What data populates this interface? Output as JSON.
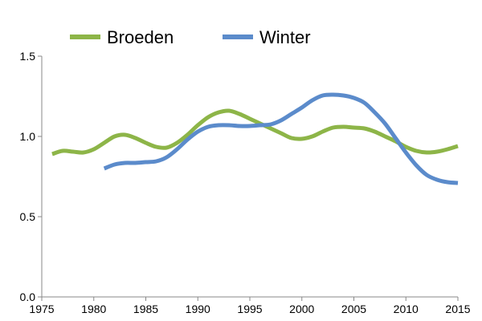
{
  "chart_data": {
    "type": "line",
    "title": "",
    "xlabel": "",
    "ylabel": "",
    "xlim": [
      1975,
      2015
    ],
    "ylim": [
      0.0,
      1.5
    ],
    "x_ticks": [
      "1975",
      "1980",
      "1985",
      "1990",
      "1995",
      "2000",
      "2005",
      "2010",
      "2015"
    ],
    "y_ticks": [
      "0.0",
      "0.5",
      "1.0",
      "1.5"
    ],
    "grid": false,
    "legend_position": "top",
    "series": [
      {
        "name": "Broeden",
        "color": "#8DB548",
        "points": [
          [
            1976,
            0.89
          ],
          [
            1977,
            0.91
          ],
          [
            1978,
            0.905
          ],
          [
            1979,
            0.9
          ],
          [
            1980,
            0.92
          ],
          [
            1981,
            0.96
          ],
          [
            1982,
            1.0
          ],
          [
            1983,
            1.01
          ],
          [
            1984,
            0.99
          ],
          [
            1985,
            0.96
          ],
          [
            1986,
            0.935
          ],
          [
            1987,
            0.93
          ],
          [
            1988,
            0.96
          ],
          [
            1989,
            1.01
          ],
          [
            1990,
            1.07
          ],
          [
            1991,
            1.12
          ],
          [
            1992,
            1.15
          ],
          [
            1993,
            1.16
          ],
          [
            1994,
            1.14
          ],
          [
            1995,
            1.11
          ],
          [
            1996,
            1.08
          ],
          [
            1997,
            1.05
          ],
          [
            1998,
            1.02
          ],
          [
            1999,
            0.99
          ],
          [
            2000,
            0.985
          ],
          [
            2001,
            1.0
          ],
          [
            2002,
            1.03
          ],
          [
            2003,
            1.055
          ],
          [
            2004,
            1.06
          ],
          [
            2005,
            1.055
          ],
          [
            2006,
            1.05
          ],
          [
            2007,
            1.03
          ],
          [
            2008,
            1.0
          ],
          [
            2009,
            0.97
          ],
          [
            2010,
            0.935
          ],
          [
            2011,
            0.91
          ],
          [
            2012,
            0.9
          ],
          [
            2013,
            0.905
          ],
          [
            2014,
            0.92
          ],
          [
            2015,
            0.94
          ]
        ]
      },
      {
        "name": "Winter",
        "color": "#5B8BCB",
        "points": [
          [
            1981,
            0.8
          ],
          [
            1982,
            0.825
          ],
          [
            1983,
            0.835
          ],
          [
            1984,
            0.835
          ],
          [
            1985,
            0.84
          ],
          [
            1986,
            0.845
          ],
          [
            1987,
            0.87
          ],
          [
            1988,
            0.92
          ],
          [
            1989,
            0.98
          ],
          [
            1990,
            1.03
          ],
          [
            1991,
            1.06
          ],
          [
            1992,
            1.07
          ],
          [
            1993,
            1.07
          ],
          [
            1994,
            1.065
          ],
          [
            1995,
            1.065
          ],
          [
            1996,
            1.07
          ],
          [
            1997,
            1.075
          ],
          [
            1998,
            1.1
          ],
          [
            1999,
            1.14
          ],
          [
            2000,
            1.18
          ],
          [
            2001,
            1.225
          ],
          [
            2002,
            1.255
          ],
          [
            2003,
            1.26
          ],
          [
            2004,
            1.255
          ],
          [
            2005,
            1.24
          ],
          [
            2006,
            1.21
          ],
          [
            2007,
            1.15
          ],
          [
            2008,
            1.08
          ],
          [
            2009,
            0.99
          ],
          [
            2010,
            0.9
          ],
          [
            2011,
            0.82
          ],
          [
            2012,
            0.76
          ],
          [
            2013,
            0.73
          ],
          [
            2014,
            0.715
          ],
          [
            2015,
            0.71
          ]
        ]
      }
    ]
  }
}
